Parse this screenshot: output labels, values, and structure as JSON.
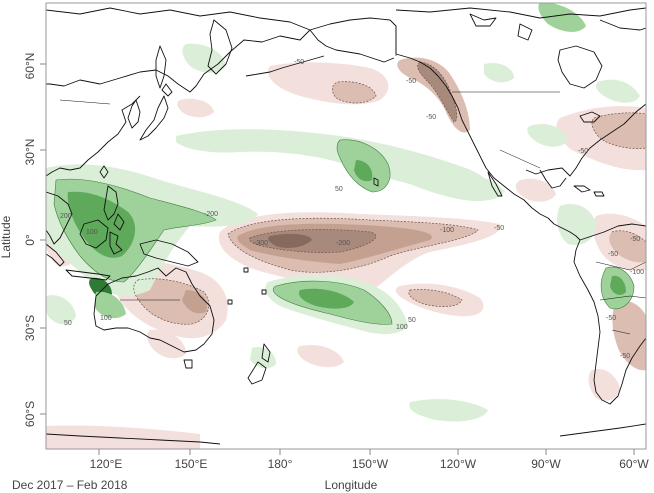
{
  "period_label": "Dec 2017 – Feb 2018",
  "axes": {
    "x_title": "Longitude",
    "y_title": "Latitude",
    "x_ticks": [
      "120°E",
      "150°E",
      "180°",
      "150°W",
      "120°W",
      "90°W",
      "60°W"
    ],
    "y_ticks": [
      "60°N",
      "30°N",
      "0°",
      "30°S",
      "60°S"
    ]
  },
  "contour_labels": [
    "-50",
    "-50",
    "-50",
    "-50",
    "50",
    "-200",
    "-300",
    "-200",
    "-100",
    "-50",
    "100",
    "200",
    "100",
    "50",
    "100",
    "50",
    "-50",
    "-50",
    "-100",
    "-50",
    "-50"
  ],
  "colors": {
    "negative_light": "#f3e0dc",
    "negative_mid": "#dcbdb2",
    "negative_dark": "#a88a7c",
    "negative_darkest": "#876a5c",
    "positive_light": "#dbeed8",
    "positive_mid": "#9fd19a",
    "positive_dark": "#5eaa5a",
    "positive_darkest": "#2f7a35",
    "coast": "#111111"
  }
}
